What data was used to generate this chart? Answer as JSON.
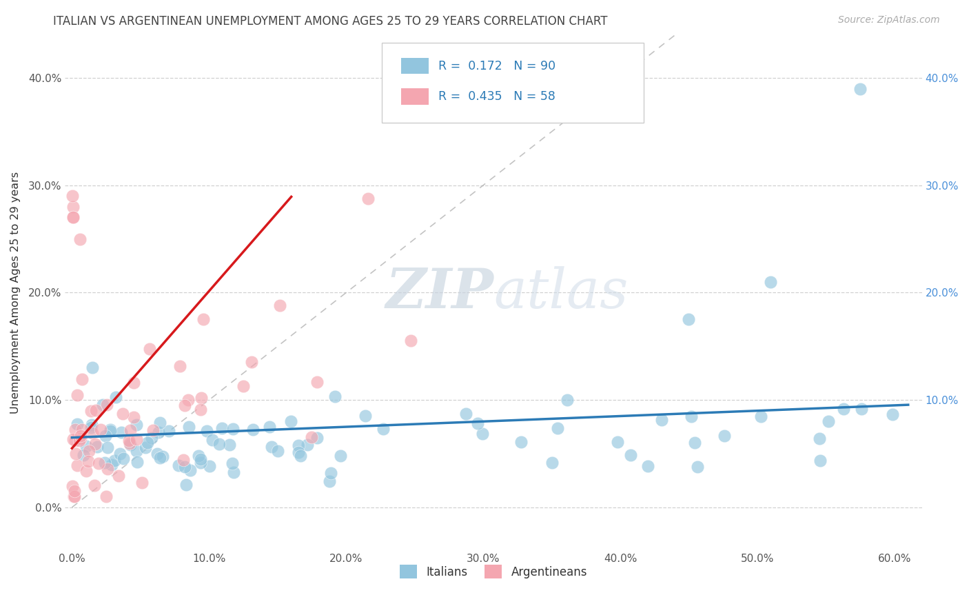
{
  "title": "ITALIAN VS ARGENTINEAN UNEMPLOYMENT AMONG AGES 25 TO 29 YEARS CORRELATION CHART",
  "source": "Source: ZipAtlas.com",
  "ylabel": "Unemployment Among Ages 25 to 29 years",
  "xlim": [
    -0.005,
    0.62
  ],
  "ylim": [
    -0.04,
    0.44
  ],
  "xtick_vals": [
    0.0,
    0.1,
    0.2,
    0.3,
    0.4,
    0.5,
    0.6
  ],
  "ytick_vals": [
    0.0,
    0.1,
    0.2,
    0.3,
    0.4
  ],
  "right_ytick_vals": [
    0.1,
    0.2,
    0.3,
    0.4
  ],
  "italian_color": "#92c5de",
  "argentinean_color": "#f4a6b0",
  "italian_line_color": "#2c7bb6",
  "argentinean_line_color": "#d7191c",
  "italian_R": 0.172,
  "italian_N": 90,
  "argentinean_R": 0.435,
  "argentinean_N": 58,
  "watermark_zip": "ZIP",
  "watermark_atlas": "atlas",
  "background_color": "#ffffff",
  "grid_color": "#cccccc",
  "title_color": "#444444",
  "legend_label_italian": "Italians",
  "legend_label_argentinean": "Argentineans"
}
